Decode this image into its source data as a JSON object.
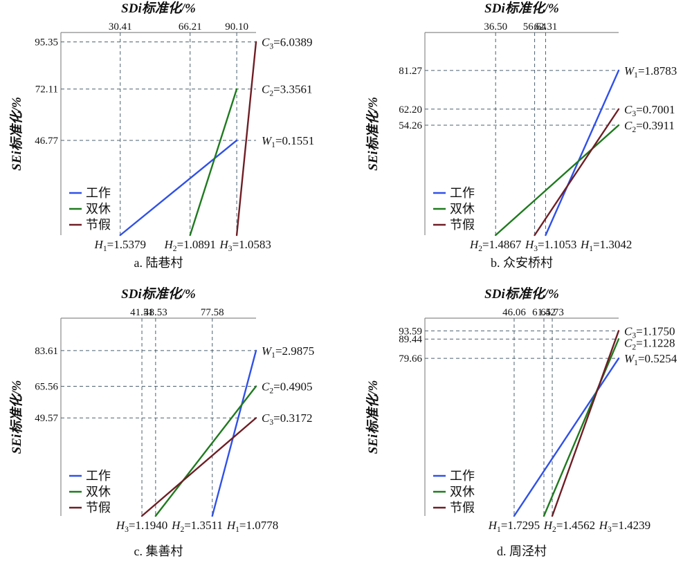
{
  "colors": {
    "work": "#2f50e8",
    "weekend": "#1e7a1e",
    "holiday": "#6e1e24",
    "grid": "#4a5f6e",
    "frame": "#8a8a8a"
  },
  "chart_data": [
    {
      "type": "line",
      "caption": "a. 陆巷村",
      "title_x": "SDi标准化/%",
      "title_y": "SEi标准化/%",
      "top_ticks": [
        "30.41",
        "66.21",
        "90.10"
      ],
      "left_ticks": [
        "95.35",
        "72.11",
        "46.77"
      ],
      "legend": [
        "工作",
        "双休",
        "节假"
      ],
      "series": [
        {
          "name": "工作",
          "key": "work",
          "start": "H1=1.5379",
          "end": "W1=0.1551",
          "x": [
            30.41,
            90.1
          ],
          "y": [
            0,
            46.77
          ]
        },
        {
          "name": "双休",
          "key": "weekend",
          "start": "H2=1.0891",
          "end": "C2=3.3561",
          "x": [
            66.21,
            90.1
          ],
          "y": [
            0,
            72.11
          ]
        },
        {
          "name": "节假",
          "key": "holiday",
          "start": "H3=1.0583",
          "end": "C3=6.0389",
          "x": [
            90.1,
            100
          ],
          "y": [
            0,
            95.35
          ]
        }
      ]
    },
    {
      "type": "line",
      "caption": "b. 众安桥村",
      "title_x": "SDi标准化/%",
      "title_y": "SEi标准化/%",
      "top_ticks": [
        "36.50",
        "56.64",
        "62.31"
      ],
      "left_ticks": [
        "81.27",
        "62.20",
        "54.26"
      ],
      "legend": [
        "工作",
        "双休",
        "节假"
      ],
      "series": [
        {
          "name": "工作",
          "key": "work",
          "start": "H1=1.3042",
          "end": "W1=1.8783",
          "x": [
            62.31,
            100
          ],
          "y": [
            0,
            81.27
          ]
        },
        {
          "name": "双休",
          "key": "weekend",
          "start": "H2=1.4867",
          "end": "C2=0.3911",
          "x": [
            36.5,
            100
          ],
          "y": [
            0,
            54.26
          ]
        },
        {
          "name": "节假",
          "key": "holiday",
          "start": "H3=1.1053",
          "end": "C3=0.7001",
          "x": [
            56.64,
            100
          ],
          "y": [
            0,
            62.2
          ]
        }
      ]
    },
    {
      "type": "line",
      "caption": "c. 集善村",
      "title_x": "SDi标准化/%",
      "title_y": "SEi标准化/%",
      "top_ticks": [
        "41.51",
        "48.53",
        "77.58"
      ],
      "left_ticks": [
        "83.61",
        "65.56",
        "49.57"
      ],
      "legend": [
        "工作",
        "双休",
        "节假"
      ],
      "series": [
        {
          "name": "工作",
          "key": "work",
          "start": "H1=1.0778",
          "end": "W1=2.9875",
          "x": [
            77.58,
            100
          ],
          "y": [
            0,
            83.61
          ]
        },
        {
          "name": "双休",
          "key": "weekend",
          "start": "H2=1.3511",
          "end": "C2=0.4905",
          "x": [
            48.53,
            100
          ],
          "y": [
            0,
            65.56
          ]
        },
        {
          "name": "节假",
          "key": "holiday",
          "start": "H3=1.1940",
          "end": "C3=0.3172",
          "x": [
            41.51,
            100
          ],
          "y": [
            0,
            49.57
          ]
        }
      ]
    },
    {
      "type": "line",
      "caption": "d. 周泾村",
      "title_x": "SDi标准化/%",
      "title_y": "SEi标准化/%",
      "top_ticks": [
        "46.06",
        "61.42",
        "65.73"
      ],
      "left_ticks": [
        "93.59",
        "89.44",
        "79.66"
      ],
      "legend": [
        "工作",
        "双休",
        "节假"
      ],
      "series": [
        {
          "name": "工作",
          "key": "work",
          "start": "H1=1.7295",
          "end": "W1=0.5254",
          "x": [
            46.06,
            100
          ],
          "y": [
            0,
            79.66
          ]
        },
        {
          "name": "双休",
          "key": "weekend",
          "start": "H2=1.4562",
          "end": "C2=1.1228",
          "x": [
            61.42,
            100
          ],
          "y": [
            0,
            89.44
          ]
        },
        {
          "name": "节假",
          "key": "holiday",
          "start": "H3=1.4239",
          "end": "C3=1.1750",
          "x": [
            65.73,
            100
          ],
          "y": [
            0,
            93.59
          ]
        }
      ]
    }
  ]
}
